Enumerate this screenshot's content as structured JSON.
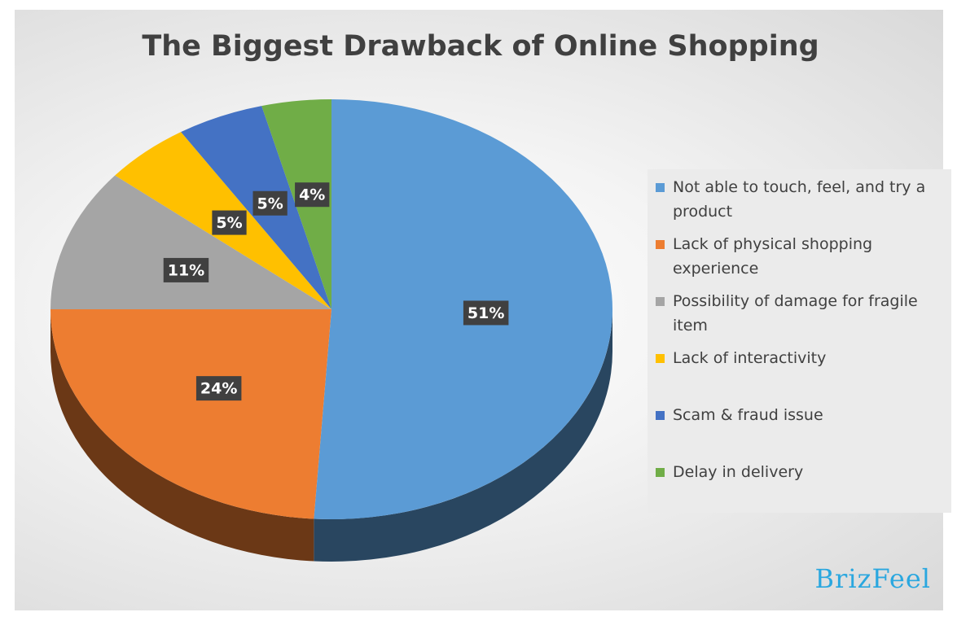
{
  "chart_data": {
    "type": "pie3d",
    "title": "The Biggest Drawback of Online Shopping",
    "categories": [
      "Not able to touch, feel, and try a product",
      "Lack of physical shopping experience",
      "Possibility of damage for fragile item",
      "Lack of interactivity",
      "Scam & fraud issue",
      "Delay in delivery"
    ],
    "values": [
      51,
      24,
      11,
      5,
      5,
      4
    ],
    "value_labels": [
      "51%",
      "24%",
      "11%",
      "5%",
      "5%",
      "4%"
    ],
    "colors": [
      "#5b9bd5",
      "#ed7d31",
      "#a5a5a5",
      "#ffc000",
      "#4472c4",
      "#70ad47"
    ],
    "legend": "right",
    "source": "BrizFeel"
  }
}
